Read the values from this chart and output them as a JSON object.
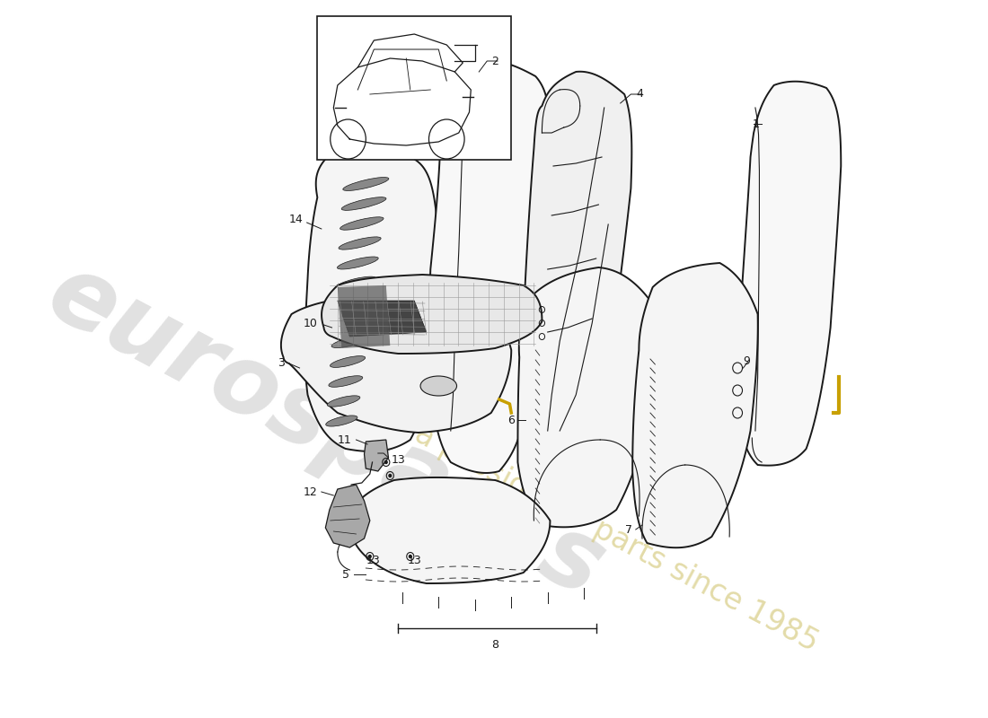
{
  "background_color": "#ffffff",
  "line_color": "#1a1a1a",
  "watermark_color1": "#c8c8c8",
  "watermark_color2": "#d4c87a",
  "lw_main": 1.4,
  "lw_thin": 0.8
}
